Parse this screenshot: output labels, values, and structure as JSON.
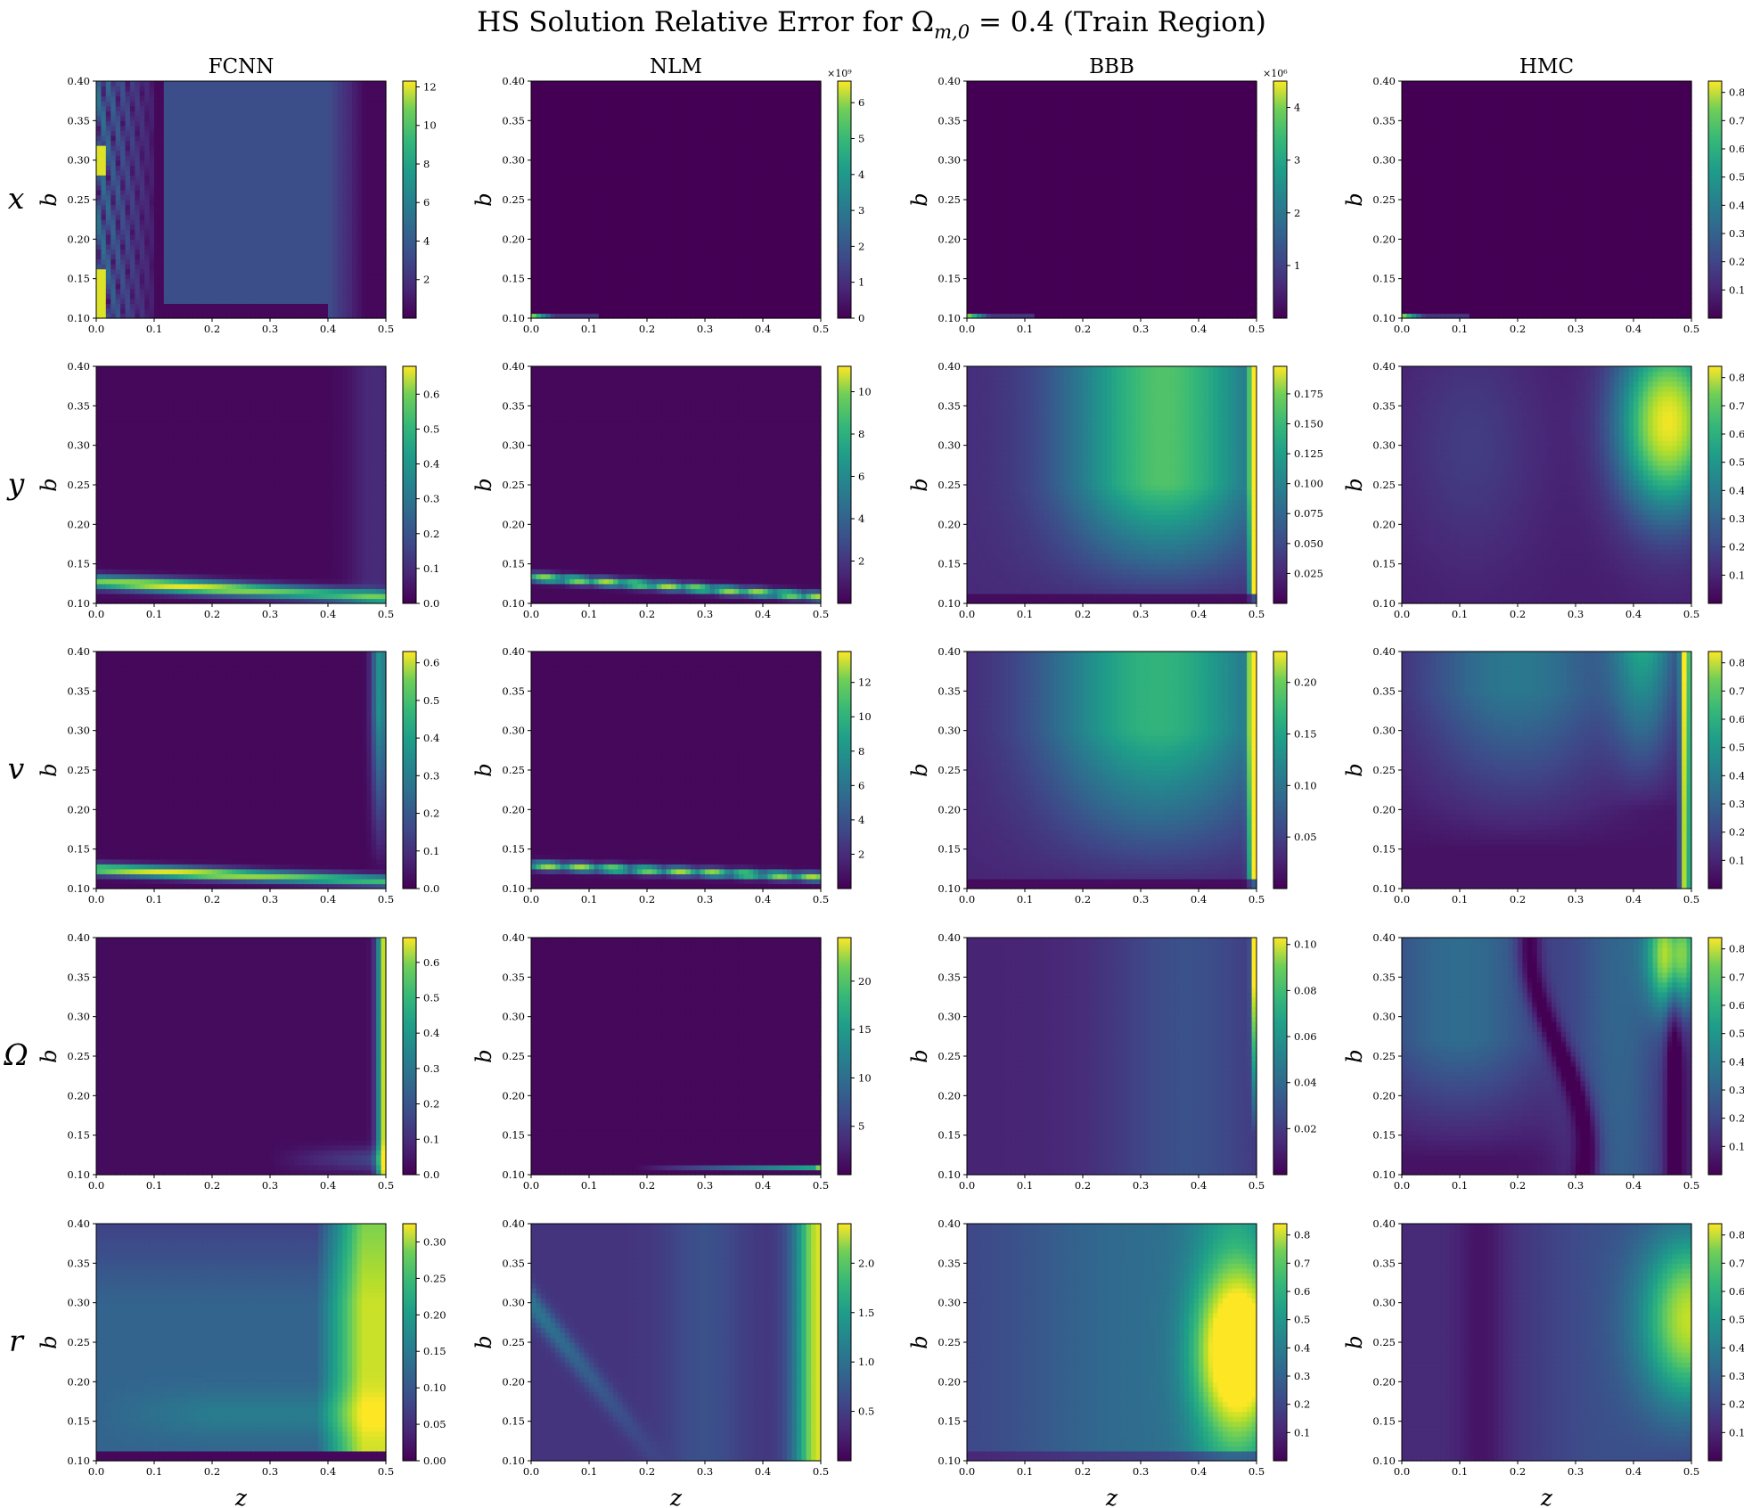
{
  "title": "HS Solution Relative Error for Ωm,0 = 0.4 (Train Region)",
  "title_parts": {
    "main": "HS Solution Relative Error for Ω",
    "sub": "m,0",
    "rest": " = 0.4 (Train Region)"
  },
  "colormap": "viridis",
  "colors": {
    "viridis_low": "#440154",
    "viridis_mid": "#21918c",
    "viridis_high": "#fde725"
  },
  "columns": [
    "FCNN",
    "NLM",
    "BBB",
    "HMC"
  ],
  "rows": [
    "x",
    "y",
    "v",
    "Ω",
    "r"
  ],
  "x_axis": {
    "label": "z",
    "ticks": [
      "0.0",
      "0.1",
      "0.2",
      "0.3",
      "0.4",
      "0.5"
    ],
    "range": [
      0.0,
      0.5
    ]
  },
  "y_axis": {
    "label": "b",
    "ticks": [
      "0.10",
      "0.15",
      "0.20",
      "0.25",
      "0.30",
      "0.35",
      "0.40"
    ],
    "range": [
      0.1,
      0.4
    ]
  },
  "chart_data": {
    "type": "heatmap",
    "title": "HS Solution Relative Error for Ωm,0 = 0.4 (Train Region)",
    "xlabel": "z",
    "ylabel": "b",
    "xlim": [
      0.0,
      0.5
    ],
    "ylim": [
      0.1,
      0.4
    ],
    "panels": [
      {
        "row": "x",
        "col": "FCNN",
        "cbar_ticks": [
          "2",
          "4",
          "6",
          "8",
          "10",
          "12"
        ],
        "cbar_range": [
          0,
          12.3
        ],
        "cbar_exp": "",
        "pattern": "x_fcnn"
      },
      {
        "row": "x",
        "col": "NLM",
        "cbar_ticks": [
          "0",
          "1",
          "2",
          "3",
          "4",
          "5",
          "6"
        ],
        "cbar_range": [
          0,
          6.6
        ],
        "cbar_exp": "×10⁹",
        "pattern": "x_lowcorner"
      },
      {
        "row": "x",
        "col": "BBB",
        "cbar_ticks": [
          "1",
          "2",
          "3",
          "4"
        ],
        "cbar_range": [
          0,
          4.5
        ],
        "cbar_exp": "×10⁶",
        "pattern": "x_lowcorner"
      },
      {
        "row": "x",
        "col": "HMC",
        "cbar_ticks": [
          "0.1",
          "0.2",
          "0.3",
          "0.4",
          "0.5",
          "0.6",
          "0.7",
          "0.8"
        ],
        "cbar_range": [
          0,
          0.84
        ],
        "cbar_exp": "",
        "pattern": "x_lowcorner"
      },
      {
        "row": "y",
        "col": "FCNN",
        "cbar_ticks": [
          "0.0",
          "0.1",
          "0.2",
          "0.3",
          "0.4",
          "0.5",
          "0.6"
        ],
        "cbar_range": [
          0,
          0.68
        ],
        "cbar_exp": "",
        "pattern": "band_fcnn"
      },
      {
        "row": "y",
        "col": "NLM",
        "cbar_ticks": [
          "2",
          "4",
          "6",
          "8",
          "10"
        ],
        "cbar_range": [
          0,
          11.2
        ],
        "cbar_exp": "",
        "pattern": "band_nlm"
      },
      {
        "row": "y",
        "col": "BBB",
        "cbar_ticks": [
          "0.025",
          "0.050",
          "0.075",
          "0.100",
          "0.125",
          "0.150",
          "0.175"
        ],
        "cbar_range": [
          0,
          0.198
        ],
        "cbar_exp": "",
        "pattern": "bbb_y"
      },
      {
        "row": "y",
        "col": "HMC",
        "cbar_ticks": [
          "0.1",
          "0.2",
          "0.3",
          "0.4",
          "0.5",
          "0.6",
          "0.7",
          "0.8"
        ],
        "cbar_range": [
          0,
          0.84
        ],
        "cbar_exp": "",
        "pattern": "hmc_y"
      },
      {
        "row": "v",
        "col": "FCNN",
        "cbar_ticks": [
          "0.0",
          "0.1",
          "0.2",
          "0.3",
          "0.4",
          "0.5",
          "0.6"
        ],
        "cbar_range": [
          0,
          0.63
        ],
        "cbar_exp": "",
        "pattern": "band_fcnn_v"
      },
      {
        "row": "v",
        "col": "NLM",
        "cbar_ticks": [
          "2",
          "4",
          "6",
          "8",
          "10",
          "12"
        ],
        "cbar_range": [
          0,
          13.8
        ],
        "cbar_exp": "",
        "pattern": "band_nlm_v"
      },
      {
        "row": "v",
        "col": "BBB",
        "cbar_ticks": [
          "0.05",
          "0.10",
          "0.15",
          "0.20"
        ],
        "cbar_range": [
          0,
          0.23
        ],
        "cbar_exp": "",
        "pattern": "bbb_v"
      },
      {
        "row": "v",
        "col": "HMC",
        "cbar_ticks": [
          "0.1",
          "0.2",
          "0.3",
          "0.4",
          "0.5",
          "0.6",
          "0.7",
          "0.8"
        ],
        "cbar_range": [
          0,
          0.84
        ],
        "cbar_exp": "",
        "pattern": "hmc_v"
      },
      {
        "row": "Ω",
        "col": "FCNN",
        "cbar_ticks": [
          "0.0",
          "0.1",
          "0.2",
          "0.3",
          "0.4",
          "0.5",
          "0.6"
        ],
        "cbar_range": [
          0,
          0.67
        ],
        "cbar_exp": "",
        "pattern": "omega_fcnn"
      },
      {
        "row": "Ω",
        "col": "NLM",
        "cbar_ticks": [
          "5",
          "10",
          "15",
          "20"
        ],
        "cbar_range": [
          0,
          24.5
        ],
        "cbar_exp": "",
        "pattern": "omega_nlm"
      },
      {
        "row": "Ω",
        "col": "BBB",
        "cbar_ticks": [
          "0.02",
          "0.04",
          "0.06",
          "0.08",
          "0.10"
        ],
        "cbar_range": [
          0,
          0.103
        ],
        "cbar_exp": "",
        "pattern": "omega_bbb"
      },
      {
        "row": "Ω",
        "col": "HMC",
        "cbar_ticks": [
          "0.1",
          "0.2",
          "0.3",
          "0.4",
          "0.5",
          "0.6",
          "0.7",
          "0.8"
        ],
        "cbar_range": [
          0,
          0.84
        ],
        "cbar_exp": "",
        "pattern": "omega_hmc"
      },
      {
        "row": "r",
        "col": "FCNN",
        "cbar_ticks": [
          "0.00",
          "0.05",
          "0.10",
          "0.15",
          "0.20",
          "0.25",
          "0.30"
        ],
        "cbar_range": [
          0,
          0.325
        ],
        "cbar_exp": "",
        "pattern": "r_fcnn"
      },
      {
        "row": "r",
        "col": "NLM",
        "cbar_ticks": [
          "0.5",
          "1.0",
          "1.5",
          "2.0"
        ],
        "cbar_range": [
          0,
          2.4
        ],
        "cbar_exp": "",
        "pattern": "r_nlm"
      },
      {
        "row": "r",
        "col": "BBB",
        "cbar_ticks": [
          "0.1",
          "0.2",
          "0.3",
          "0.4",
          "0.5",
          "0.6",
          "0.7",
          "0.8"
        ],
        "cbar_range": [
          0,
          0.84
        ],
        "cbar_exp": "",
        "pattern": "r_bbb"
      },
      {
        "row": "r",
        "col": "HMC",
        "cbar_ticks": [
          "0.1",
          "0.2",
          "0.3",
          "0.4",
          "0.5",
          "0.6",
          "0.7",
          "0.8"
        ],
        "cbar_range": [
          0,
          0.84
        ],
        "cbar_exp": "",
        "pattern": "r_hmc"
      }
    ]
  }
}
